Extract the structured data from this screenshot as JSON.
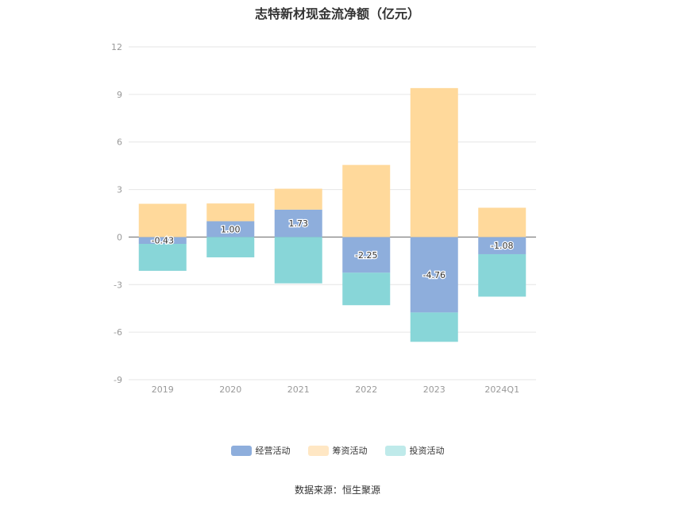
{
  "chart_data": {
    "type": "bar",
    "stacked": true,
    "title": "志特新材现金流净额（亿元）",
    "categories": [
      "2019",
      "2020",
      "2021",
      "2022",
      "2023",
      "2024Q1"
    ],
    "series": [
      {
        "name": "经营活动",
        "color": "#8eaedc",
        "values": [
          -0.43,
          1.0,
          1.73,
          -2.25,
          -4.76,
          -1.08
        ],
        "labels": [
          "-0.43",
          "1.00",
          "1.73",
          "-2.25",
          "-4.76",
          "-1.08"
        ]
      },
      {
        "name": "筹资活动",
        "color": "#ffd99b",
        "values": [
          2.1,
          1.12,
          1.32,
          4.55,
          9.4,
          1.85
        ]
      },
      {
        "name": "投资活动",
        "color": "#88d6d8",
        "values": [
          -1.7,
          -1.28,
          -2.92,
          -2.05,
          -1.85,
          -2.68
        ]
      }
    ],
    "ylim": [
      -9,
      12
    ],
    "yticks": [
      12,
      9,
      6,
      3,
      0,
      -3,
      -6,
      -9
    ],
    "grid": true,
    "legend_position": "bottom"
  },
  "source": "数据来源：恒生聚源"
}
